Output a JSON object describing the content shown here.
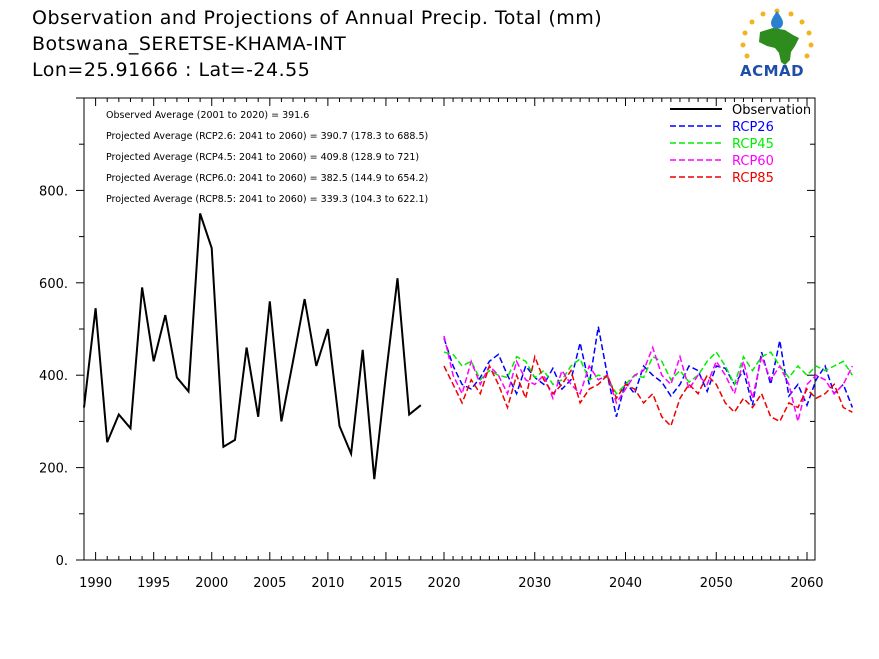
{
  "header": {
    "title_line1": "Observation and Projections of Annual Precip. Total (mm)",
    "title_line2": "Botswana_SERETSE-KHAMA-INT",
    "title_line3": "Lon=25.91666 : Lat=-24.55",
    "logo_text": "ACMAD"
  },
  "colors": {
    "Observation": "#000000",
    "RCP26": "#0000ff",
    "RCP45": "#00ee00",
    "RCP60": "#ff00ff",
    "RCP85": "#ee0000"
  },
  "chart_data": {
    "type": "line",
    "xlim": [
      1989,
      2060
    ],
    "ylim": [
      0,
      1000
    ],
    "grid": false,
    "legend_position": "top-right",
    "x_ticks": [
      {
        "value": 1990,
        "label": "1990"
      },
      {
        "value": 1995,
        "label": "1995"
      },
      {
        "value": 2000,
        "label": "2000"
      },
      {
        "value": 2005,
        "label": "2005"
      },
      {
        "value": 2010,
        "label": "2010"
      },
      {
        "value": 2015,
        "label": "2015"
      },
      {
        "value": 2020,
        "label": "2020"
      },
      {
        "value": 2030,
        "label": "2030"
      },
      {
        "value": 2040,
        "label": "2040"
      },
      {
        "value": 2050,
        "label": "2050"
      },
      {
        "value": 2060,
        "label": "2060"
      }
    ],
    "y_ticks": [
      {
        "value": 0,
        "label": "0."
      },
      {
        "value": 200,
        "label": "200."
      },
      {
        "value": 400,
        "label": "400."
      },
      {
        "value": 600,
        "label": "600."
      },
      {
        "value": 800,
        "label": "800."
      }
    ],
    "annotations": [
      "Observed Average (2001 to 2020) = 391.6",
      "Projected Average (RCP2.6: 2041 to 2060) = 390.7 (178.3 to 688.5)",
      "Projected Average (RCP4.5: 2041 to 2060) = 409.8 (128.9 to 721)",
      "Projected Average (RCP6.0: 2041 to 2060) = 382.5 (144.9 to 654.2)",
      "Projected Average (RCP8.5: 2041 to 2060) = 339.3 (104.3 to 622.1)"
    ],
    "series": [
      {
        "name": "Observation",
        "style": "solid",
        "x_start": 1989,
        "values": [
          330,
          545,
          255,
          315,
          285,
          590,
          430,
          530,
          395,
          365,
          750,
          675,
          245,
          260,
          460,
          310,
          560,
          300,
          430,
          565,
          420,
          500,
          290,
          230,
          455,
          175,
          400,
          610,
          315,
          335
        ]
      },
      {
        "name": "RCP26",
        "style": "dashed",
        "x_start": 2020,
        "values": [
          480,
          420,
          380,
          370,
          395,
          430,
          445,
          400,
          360,
          420,
          395,
          380,
          415,
          370,
          390,
          470,
          380,
          505,
          400,
          310,
          385,
          360,
          420,
          400,
          385,
          355,
          380,
          420,
          410,
          365,
          420,
          415,
          380,
          410,
          335,
          450,
          380,
          475,
          355,
          380,
          335,
          390,
          420,
          360,
          380,
          330
        ]
      },
      {
        "name": "RCP45",
        "style": "dashed",
        "x_start": 2020,
        "values": [
          450,
          445,
          420,
          430,
          390,
          410,
          400,
          395,
          440,
          430,
          395,
          410,
          380,
          390,
          420,
          435,
          390,
          400,
          395,
          360,
          380,
          400,
          395,
          440,
          430,
          390,
          410,
          385,
          400,
          430,
          450,
          420,
          380,
          440,
          410,
          440,
          450,
          420,
          395,
          420,
          400,
          420,
          410,
          420,
          430,
          400
        ]
      },
      {
        "name": "RCP60",
        "style": "dashed",
        "x_start": 2020,
        "values": [
          485,
          400,
          360,
          430,
          380,
          420,
          400,
          360,
          430,
          390,
          380,
          400,
          350,
          410,
          380,
          360,
          420,
          390,
          400,
          340,
          370,
          400,
          410,
          460,
          400,
          380,
          440,
          370,
          400,
          380,
          430,
          400,
          360,
          430,
          350,
          440,
          390,
          420,
          380,
          300,
          380,
          400,
          390,
          360,
          380,
          420
        ]
      },
      {
        "name": "RCP85",
        "style": "dashed",
        "x_start": 2020,
        "values": [
          420,
          380,
          340,
          390,
          360,
          420,
          380,
          330,
          400,
          350,
          440,
          390,
          360,
          380,
          410,
          340,
          370,
          380,
          400,
          350,
          380,
          370,
          340,
          360,
          310,
          290,
          350,
          380,
          360,
          400,
          380,
          340,
          320,
          350,
          330,
          360,
          310,
          300,
          340,
          330,
          370,
          350,
          360,
          380,
          330,
          320
        ]
      }
    ]
  }
}
